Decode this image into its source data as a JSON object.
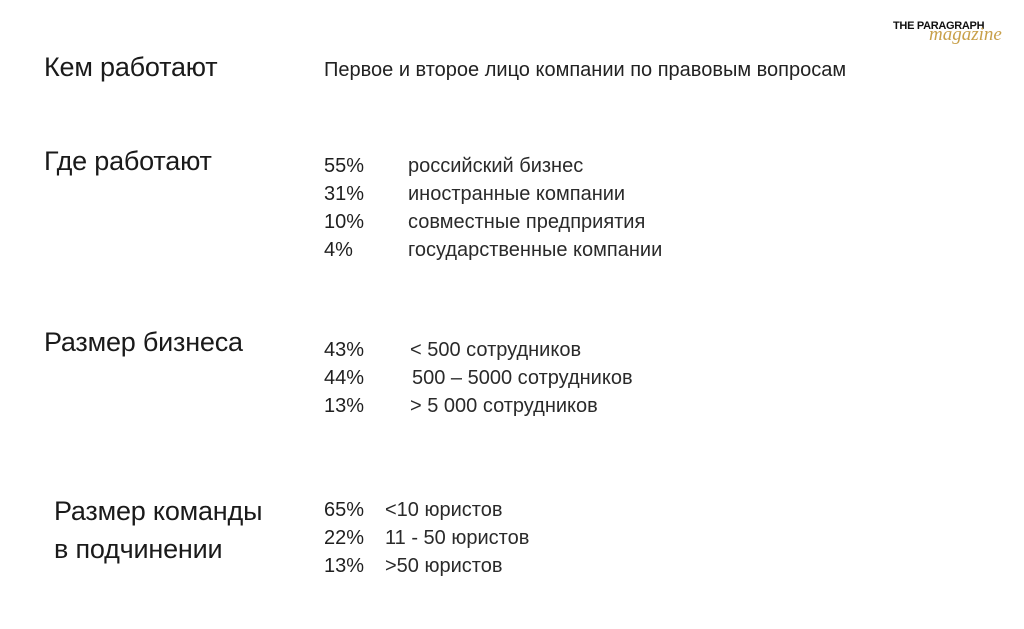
{
  "logo": {
    "top_text": "THE PARAGRAPH",
    "script_text": "magazine"
  },
  "who": {
    "heading": "Кем работают",
    "value": "Первое и второе лицо компании по правовым вопросам"
  },
  "where": {
    "heading": "Где работают",
    "items": [
      {
        "percent": "55%",
        "label": "российский бизнес"
      },
      {
        "percent": "31%",
        "label": "иностранные компании"
      },
      {
        "percent": "10%",
        "label": "совместные предприятия"
      },
      {
        "percent": "4%",
        "label": "государственные компании"
      }
    ]
  },
  "business_size": {
    "heading": "Размер бизнеса",
    "items": [
      {
        "percent": "43%",
        "label": "< 500 сотрудников"
      },
      {
        "percent": "44%",
        "label": "500 – 5000 сотрудников"
      },
      {
        "percent": "13%",
        "label": "> 5 000 сотрудников"
      }
    ]
  },
  "team_size": {
    "heading_line1": "Размер команды",
    "heading_line2": "в подчинении",
    "items": [
      {
        "percent": "65%",
        "label": "<10 юристов"
      },
      {
        "percent": "22%",
        "label": "11 - 50 юристов"
      },
      {
        "percent": "13%",
        "label": ">50 юристов"
      }
    ]
  }
}
